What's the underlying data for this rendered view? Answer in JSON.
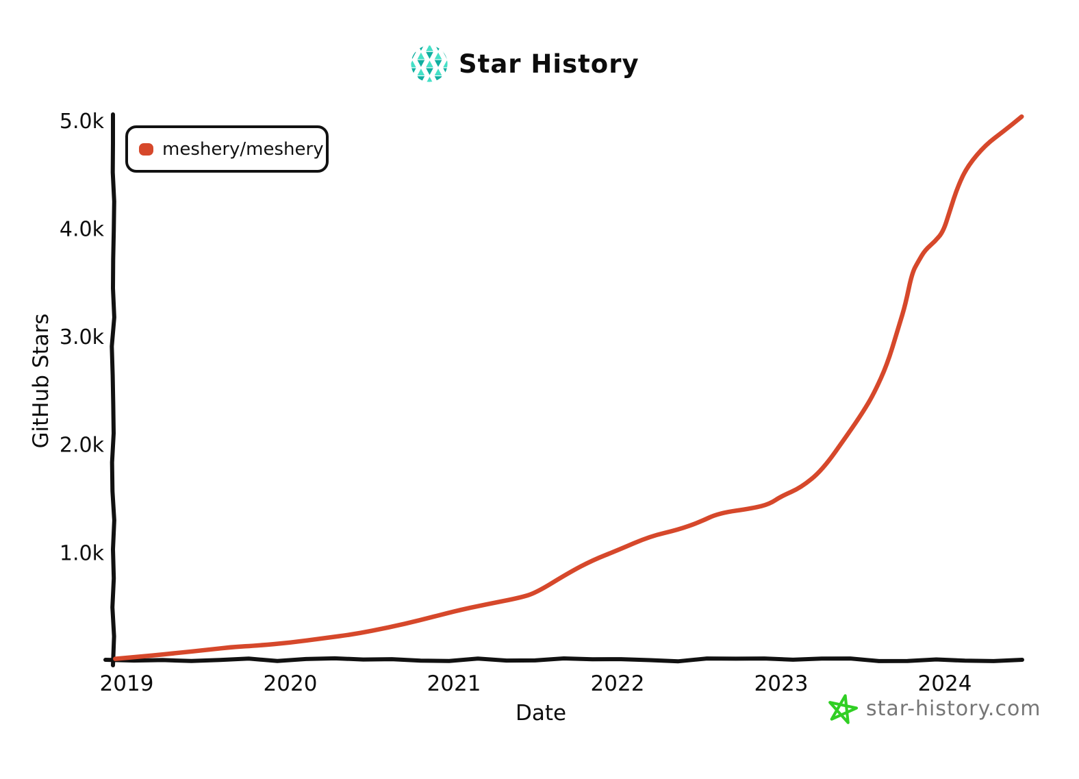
{
  "header": {
    "title": "Star History"
  },
  "legend": {
    "items": [
      {
        "label": "meshery/meshery",
        "color": "#d6482b"
      }
    ]
  },
  "watermark": {
    "text": "star-history.com"
  },
  "colors": {
    "accent_red": "#d6482b",
    "axis_black": "#111111",
    "logo_teal_dark": "#10afa0",
    "logo_teal_light": "#45e0c7",
    "star_green": "#30cf24",
    "watermark_gray": "#767676"
  },
  "chart_data": {
    "type": "line",
    "title": "Star History",
    "xlabel": "Date",
    "ylabel": "GitHub Stars",
    "grid": false,
    "legend_position": "top-left",
    "x_range": [
      2018.9,
      2024.55
    ],
    "y_range": [
      0,
      5100
    ],
    "x_ticks": [
      2019,
      2020,
      2021,
      2022,
      2023,
      2024
    ],
    "x_tick_labels": [
      "2019",
      "2020",
      "2021",
      "2022",
      "2023",
      "2024"
    ],
    "y_ticks": [
      1000,
      2000,
      3000,
      4000,
      5000
    ],
    "y_tick_labels": [
      "1.0k",
      "2.0k",
      "3.0k",
      "4.0k",
      "5.0k"
    ],
    "series": [
      {
        "name": "meshery/meshery",
        "color": "#d6482b",
        "points": [
          [
            2018.93,
            15
          ],
          [
            2019.0,
            25
          ],
          [
            2019.15,
            45
          ],
          [
            2019.3,
            68
          ],
          [
            2019.5,
            100
          ],
          [
            2019.65,
            125
          ],
          [
            2019.8,
            138
          ],
          [
            2020.0,
            165
          ],
          [
            2020.2,
            205
          ],
          [
            2020.4,
            245
          ],
          [
            2020.6,
            305
          ],
          [
            2020.8,
            375
          ],
          [
            2021.0,
            455
          ],
          [
            2021.2,
            520
          ],
          [
            2021.4,
            580
          ],
          [
            2021.5,
            625
          ],
          [
            2021.7,
            810
          ],
          [
            2021.85,
            930
          ],
          [
            2022.0,
            1020
          ],
          [
            2022.2,
            1150
          ],
          [
            2022.37,
            1210
          ],
          [
            2022.5,
            1280
          ],
          [
            2022.62,
            1365
          ],
          [
            2022.83,
            1410
          ],
          [
            2022.93,
            1450
          ],
          [
            2023.0,
            1520
          ],
          [
            2023.12,
            1600
          ],
          [
            2023.25,
            1760
          ],
          [
            2023.41,
            2100
          ],
          [
            2023.5,
            2300
          ],
          [
            2023.57,
            2480
          ],
          [
            2023.65,
            2750
          ],
          [
            2023.72,
            3100
          ],
          [
            2023.76,
            3300
          ],
          [
            2023.8,
            3590
          ],
          [
            2023.84,
            3700
          ],
          [
            2023.88,
            3800
          ],
          [
            2023.94,
            3880
          ],
          [
            2023.99,
            3970
          ],
          [
            2024.03,
            4160
          ],
          [
            2024.08,
            4390
          ],
          [
            2024.14,
            4580
          ],
          [
            2024.25,
            4775
          ],
          [
            2024.36,
            4900
          ],
          [
            2024.47,
            5035
          ]
        ]
      }
    ]
  }
}
